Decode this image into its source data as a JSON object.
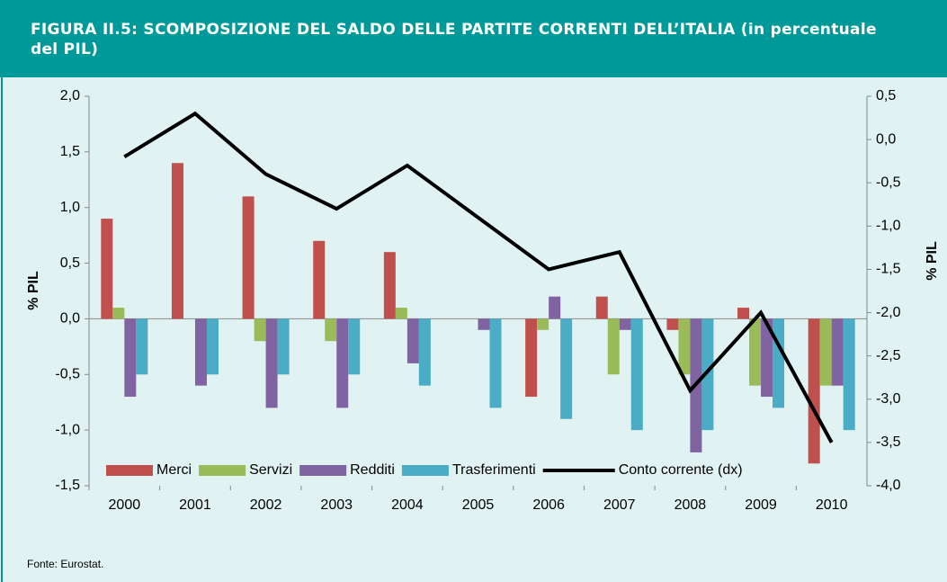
{
  "chart_data": {
    "type": "bar",
    "title": "FIGURA II.5: SCOMPOSIZIONE DEL SALDO DELLE PARTITE CORRENTI DELL’ITALIA (in percentuale del PIL)",
    "ylabel": "% PIL",
    "y2label": "% PIL",
    "source": "Fonte: Eurostat.",
    "categories": [
      "2000",
      "2001",
      "2002",
      "2003",
      "2004",
      "2005",
      "2006",
      "2007",
      "2008",
      "2009",
      "2010"
    ],
    "series": [
      {
        "name": "Merci",
        "color": "#c0504d",
        "values": [
          0.9,
          1.4,
          1.1,
          0.7,
          0.6,
          0.0,
          -0.7,
          0.2,
          -0.1,
          0.1,
          -1.3
        ]
      },
      {
        "name": "Servizi",
        "color": "#9bbb59",
        "values": [
          0.1,
          0.0,
          -0.2,
          -0.2,
          0.1,
          0.0,
          -0.1,
          -0.5,
          -0.5,
          -0.6,
          -0.6
        ]
      },
      {
        "name": "Redditi",
        "color": "#8064a2",
        "values": [
          -0.7,
          -0.6,
          -0.8,
          -0.8,
          -0.4,
          -0.1,
          0.2,
          -0.1,
          -1.2,
          -0.7,
          -0.6
        ]
      },
      {
        "name": "Trasferimenti",
        "color": "#4bacc6",
        "values": [
          -0.5,
          -0.5,
          -0.5,
          -0.5,
          -0.6,
          -0.8,
          -0.9,
          -1.0,
          -1.0,
          -0.8,
          -1.0
        ]
      },
      {
        "name": "Conto corrente (dx)",
        "color": "#000000",
        "type": "line",
        "axis": "y2",
        "values": [
          -0.2,
          0.3,
          -0.4,
          -0.8,
          -0.3,
          -0.9,
          -1.5,
          -1.3,
          -2.9,
          -2.0,
          -3.5
        ]
      }
    ],
    "ylim": [
      -1.5,
      2.0
    ],
    "yticks": [
      {
        "value": -1.5,
        "label": "-1,5"
      },
      {
        "value": -1.0,
        "label": "-1,0"
      },
      {
        "value": -0.5,
        "label": "-0,5"
      },
      {
        "value": 0,
        "label": "0,0"
      },
      {
        "value": 0.5,
        "label": "0,5"
      },
      {
        "value": 1.0,
        "label": "1,0"
      },
      {
        "value": 1.5,
        "label": "1,5"
      },
      {
        "value": 2.0,
        "label": "2,0"
      }
    ],
    "y2lim": [
      -4.0,
      0.5
    ],
    "y2ticks": [
      {
        "value": -4.0,
        "label": "-4,0"
      },
      {
        "value": -3.5,
        "label": "-3,5"
      },
      {
        "value": -3.0,
        "label": "-3,0"
      },
      {
        "value": -2.5,
        "label": "-2,5"
      },
      {
        "value": -2.0,
        "label": "-2,0"
      },
      {
        "value": -1.5,
        "label": "-1,5"
      },
      {
        "value": -1.0,
        "label": "-1,0"
      },
      {
        "value": -0.5,
        "label": "-0,5"
      },
      {
        "value": 0,
        "label": "0,0"
      },
      {
        "value": 0.5,
        "label": "0,5"
      }
    ],
    "grid": false,
    "legend": "bottom"
  }
}
